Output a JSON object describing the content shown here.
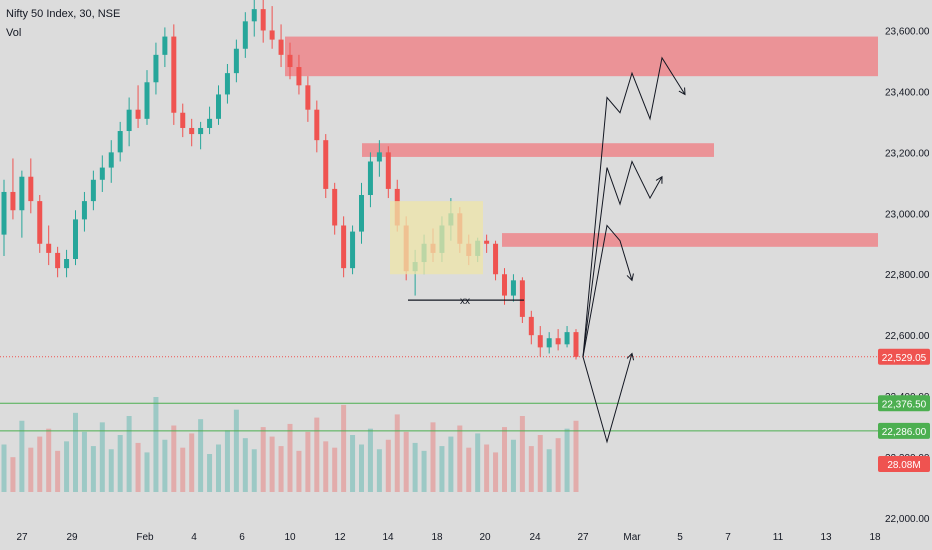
{
  "header": {
    "symbol_line": "Nifty 50 Index, 30, NSE",
    "volume_label": "Vol"
  },
  "colors": {
    "background": "#dcdcdc",
    "up": "#26a69a",
    "down": "#ef5350",
    "zone_red": "#ec8b8f",
    "zone_yellow": "#efe6a8",
    "support_line": "#4caf50",
    "arrow": "#131722"
  },
  "annotation_label": "xx",
  "chart_data": {
    "type": "candlestick",
    "title": "Nifty 50 Index, 30, NSE",
    "price_axis": {
      "min": 22000,
      "max": 23700,
      "ticks": [
        {
          "value": 23600,
          "label": "23,600.00"
        },
        {
          "value": 23400,
          "label": "23,400.00"
        },
        {
          "value": 23200,
          "label": "23,200.00"
        },
        {
          "value": 23000,
          "label": "23,000.00"
        },
        {
          "value": 22800,
          "label": "22,800.00"
        },
        {
          "value": 22600,
          "label": "22,600.00"
        },
        {
          "value": 22400,
          "label": "22,400.00"
        },
        {
          "value": 22200,
          "label": "22,200.00"
        },
        {
          "value": 22000,
          "label": "22,000.00"
        }
      ]
    },
    "time_axis": {
      "ticks": [
        "27",
        "29",
        "Feb",
        "4",
        "6",
        "10",
        "12",
        "14",
        "18",
        "20",
        "24",
        "27",
        "Mar",
        "5",
        "7",
        "11",
        "13",
        "18"
      ]
    },
    "last_price": {
      "value": 22529.05,
      "label": "22,529.05"
    },
    "support_levels": [
      {
        "value": 22376.5,
        "label": "22,376.50"
      },
      {
        "value": 22286.0,
        "label": "22,286.00"
      }
    ],
    "volume_last": {
      "label": "28.08M"
    },
    "resistance_zones": [
      {
        "from_price": 23450,
        "to_price": 23580,
        "from_tick": "10",
        "to_tick": "18"
      },
      {
        "from_price": 23185,
        "to_price": 23230,
        "from_tick": "12",
        "to_tick": "7"
      },
      {
        "from_price": 22890,
        "to_price": 22935,
        "from_tick": "20",
        "to_tick": "18"
      }
    ],
    "range_box": {
      "from_price": 22800,
      "to_price": 23040,
      "from_tick": "14",
      "to_tick": "20",
      "label": "xx",
      "label_price": 22715
    },
    "candles": [
      [
        22930,
        23110,
        22860,
        23070
      ],
      [
        23070,
        23180,
        22980,
        23010
      ],
      [
        23010,
        23140,
        22920,
        23120
      ],
      [
        23120,
        23180,
        23000,
        23040
      ],
      [
        23040,
        23060,
        22870,
        22900
      ],
      [
        22900,
        22960,
        22830,
        22870
      ],
      [
        22870,
        22890,
        22790,
        22820
      ],
      [
        22820,
        22880,
        22790,
        22850
      ],
      [
        22850,
        23010,
        22830,
        22980
      ],
      [
        22980,
        23070,
        22940,
        23040
      ],
      [
        23040,
        23140,
        23010,
        23110
      ],
      [
        23110,
        23190,
        23070,
        23150
      ],
      [
        23150,
        23240,
        23100,
        23200
      ],
      [
        23200,
        23300,
        23170,
        23270
      ],
      [
        23270,
        23380,
        23220,
        23340
      ],
      [
        23340,
        23420,
        23280,
        23310
      ],
      [
        23310,
        23470,
        23290,
        23430
      ],
      [
        23430,
        23560,
        23390,
        23520
      ],
      [
        23520,
        23610,
        23480,
        23580
      ],
      [
        23580,
        23620,
        23290,
        23330
      ],
      [
        23330,
        23360,
        23250,
        23280
      ],
      [
        23280,
        23310,
        23220,
        23260
      ],
      [
        23260,
        23300,
        23210,
        23280
      ],
      [
        23280,
        23350,
        23260,
        23310
      ],
      [
        23310,
        23420,
        23290,
        23390
      ],
      [
        23390,
        23490,
        23360,
        23460
      ],
      [
        23460,
        23570,
        23430,
        23540
      ],
      [
        23540,
        23660,
        23510,
        23630
      ],
      [
        23630,
        23700,
        23580,
        23670
      ],
      [
        23670,
        23700,
        23560,
        23600
      ],
      [
        23600,
        23680,
        23540,
        23570
      ],
      [
        23570,
        23620,
        23480,
        23520
      ],
      [
        23520,
        23560,
        23440,
        23480
      ],
      [
        23480,
        23520,
        23390,
        23420
      ],
      [
        23420,
        23450,
        23300,
        23340
      ],
      [
        23340,
        23370,
        23200,
        23240
      ],
      [
        23240,
        23260,
        23050,
        23080
      ],
      [
        23080,
        23100,
        22930,
        22960
      ],
      [
        22960,
        22990,
        22790,
        22820
      ],
      [
        22820,
        22960,
        22800,
        22940
      ],
      [
        22940,
        23100,
        22900,
        23060
      ],
      [
        23060,
        23200,
        23020,
        23170
      ],
      [
        23170,
        23240,
        23120,
        23200
      ],
      [
        23200,
        23220,
        23050,
        23080
      ],
      [
        23080,
        23110,
        22940,
        22960
      ],
      [
        22960,
        22990,
        22780,
        22810
      ],
      [
        22810,
        22880,
        22730,
        22840
      ],
      [
        22840,
        22930,
        22800,
        22900
      ],
      [
        22900,
        22950,
        22840,
        22870
      ],
      [
        22870,
        22990,
        22840,
        22960
      ],
      [
        22960,
        23050,
        22910,
        23000
      ],
      [
        23000,
        23020,
        22870,
        22900
      ],
      [
        22900,
        22930,
        22830,
        22860
      ],
      [
        22860,
        22920,
        22840,
        22910
      ],
      [
        22910,
        22930,
        22870,
        22900
      ],
      [
        22900,
        22910,
        22780,
        22800
      ],
      [
        22800,
        22820,
        22700,
        22730
      ],
      [
        22730,
        22800,
        22710,
        22780
      ],
      [
        22780,
        22790,
        22640,
        22660
      ],
      [
        22660,
        22680,
        22570,
        22600
      ],
      [
        22600,
        22630,
        22530,
        22560
      ],
      [
        22560,
        22610,
        22540,
        22590
      ],
      [
        22590,
        22620,
        22550,
        22570
      ],
      [
        22570,
        22630,
        22560,
        22610
      ],
      [
        22610,
        22620,
        22520,
        22529
      ]
    ],
    "volumes": [
      30,
      22,
      45,
      28,
      35,
      40,
      26,
      32,
      50,
      38,
      29,
      44,
      27,
      36,
      48,
      31,
      25,
      60,
      33,
      42,
      28,
      37,
      46,
      24,
      30,
      39,
      52,
      34,
      27,
      41,
      35,
      29,
      43,
      26,
      38,
      47,
      32,
      28,
      55,
      36,
      30,
      40,
      27,
      33,
      49,
      38,
      31,
      26,
      44,
      29,
      35,
      42,
      28,
      37,
      30,
      25,
      41,
      33,
      48,
      29,
      36,
      27,
      34,
      40,
      45
    ],
    "projections": [
      {
        "points": [
          [
            "27",
            22529
          ],
          [
            "28",
            23380
          ],
          [
            "29",
            23330
          ],
          [
            "Mar",
            23460
          ],
          [
            "4",
            23310
          ],
          [
            "5",
            23510
          ],
          [
            "6",
            23390
          ]
        ]
      },
      {
        "points": [
          [
            "27",
            22529
          ],
          [
            "28",
            23150
          ],
          [
            "29",
            23030
          ],
          [
            "Mar",
            23170
          ],
          [
            "4",
            23050
          ],
          [
            "5",
            23120
          ]
        ]
      },
      {
        "points": [
          [
            "27",
            22529
          ],
          [
            "28",
            22960
          ],
          [
            "29",
            22910
          ],
          [
            "Mar",
            22780
          ]
        ]
      },
      {
        "points": [
          [
            "27",
            22529
          ],
          [
            "28",
            22250
          ],
          [
            "Mar",
            22540
          ]
        ]
      }
    ]
  }
}
